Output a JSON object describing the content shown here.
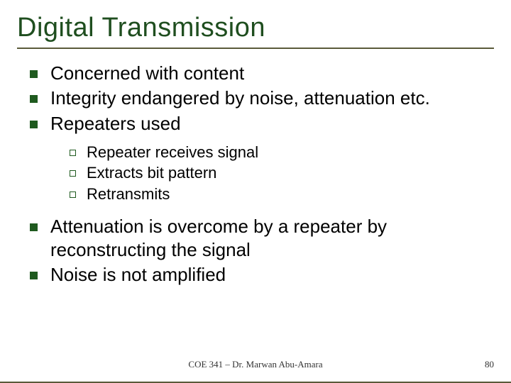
{
  "slide": {
    "title": "Digital Transmission",
    "title_color": "#1f4e1f",
    "title_fontsize": 38,
    "body_fontsize_l1": 26,
    "body_fontsize_l2": 22,
    "bullet_l1_color": "#1f5a1f",
    "bullet_l2_border": "#1f5a1f",
    "border_color": "#5a5a3a",
    "background": "#ffffff",
    "bullets": [
      {
        "level": 1,
        "text": "Concerned with content"
      },
      {
        "level": 1,
        "text": "Integrity endangered by noise, attenuation etc."
      },
      {
        "level": 1,
        "text": "Repeaters used"
      },
      {
        "level": 2,
        "text": "Repeater receives signal"
      },
      {
        "level": 2,
        "text": "Extracts bit pattern"
      },
      {
        "level": 2,
        "text": "Retransmits"
      },
      {
        "level": 1,
        "text": "Attenuation is overcome by a repeater by reconstructing the signal"
      },
      {
        "level": 1,
        "text": "Noise is not amplified"
      }
    ],
    "footer": "COE 341 – Dr. Marwan Abu-Amara",
    "page_number": "80",
    "footer_fontsize": 13
  }
}
